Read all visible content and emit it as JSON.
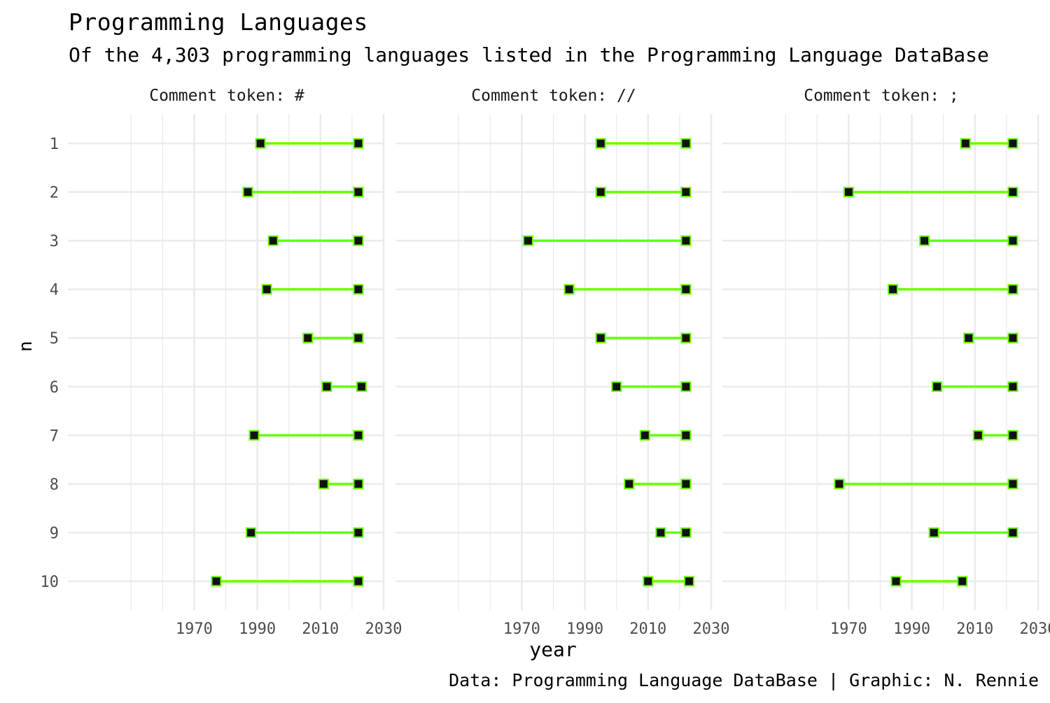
{
  "header": {
    "title": "Programming Languages",
    "subtitle": "Of the 4,303 programming languages listed in the Programming Language DataBase"
  },
  "axes": {
    "xlabel": "year",
    "ylabel": "n"
  },
  "caption": "Data: Programming Language DataBase | Graphic: N. Rennie",
  "colors": {
    "segment": "#66FF00",
    "point_fill": "#111111",
    "point_stroke": "#66FF00",
    "grid": "#EBEBEB",
    "tick_text": "#4D4D4D"
  },
  "chart_data": {
    "type": "dumbbell",
    "title": "Programming Languages",
    "subtitle": "Of the 4,303 programming languages listed in the Programming Language DataBase",
    "xlabel": "year",
    "ylabel": "n",
    "x_ticks": [
      1970,
      1990,
      2010,
      2030
    ],
    "xlim": [
      1930,
      2030
    ],
    "y_categories": [
      "1",
      "2",
      "3",
      "4",
      "5",
      "6",
      "7",
      "8",
      "9",
      "10"
    ],
    "grid": true,
    "legend": "none",
    "facets": [
      {
        "label": "Comment token: #",
        "start": [
          1991,
          1987,
          1995,
          1993,
          2006,
          2012,
          1989,
          2011,
          1988,
          1977
        ],
        "end": [
          2022,
          2022,
          2022,
          2022,
          2022,
          2023,
          2022,
          2022,
          2022,
          2022
        ]
      },
      {
        "label": "Comment token: //",
        "start": [
          1995,
          1995,
          1972,
          1985,
          1995,
          2000,
          2009,
          2004,
          2014,
          2010
        ],
        "end": [
          2022,
          2022,
          2022,
          2022,
          2022,
          2022,
          2022,
          2022,
          2022,
          2023
        ]
      },
      {
        "label": "Comment token: ;",
        "start": [
          2007,
          1970,
          1994,
          1984,
          2008,
          1998,
          2011,
          1967,
          1997,
          1985
        ],
        "end": [
          2022,
          2022,
          2022,
          2022,
          2022,
          2022,
          2022,
          2022,
          2022,
          2006
        ]
      }
    ]
  }
}
